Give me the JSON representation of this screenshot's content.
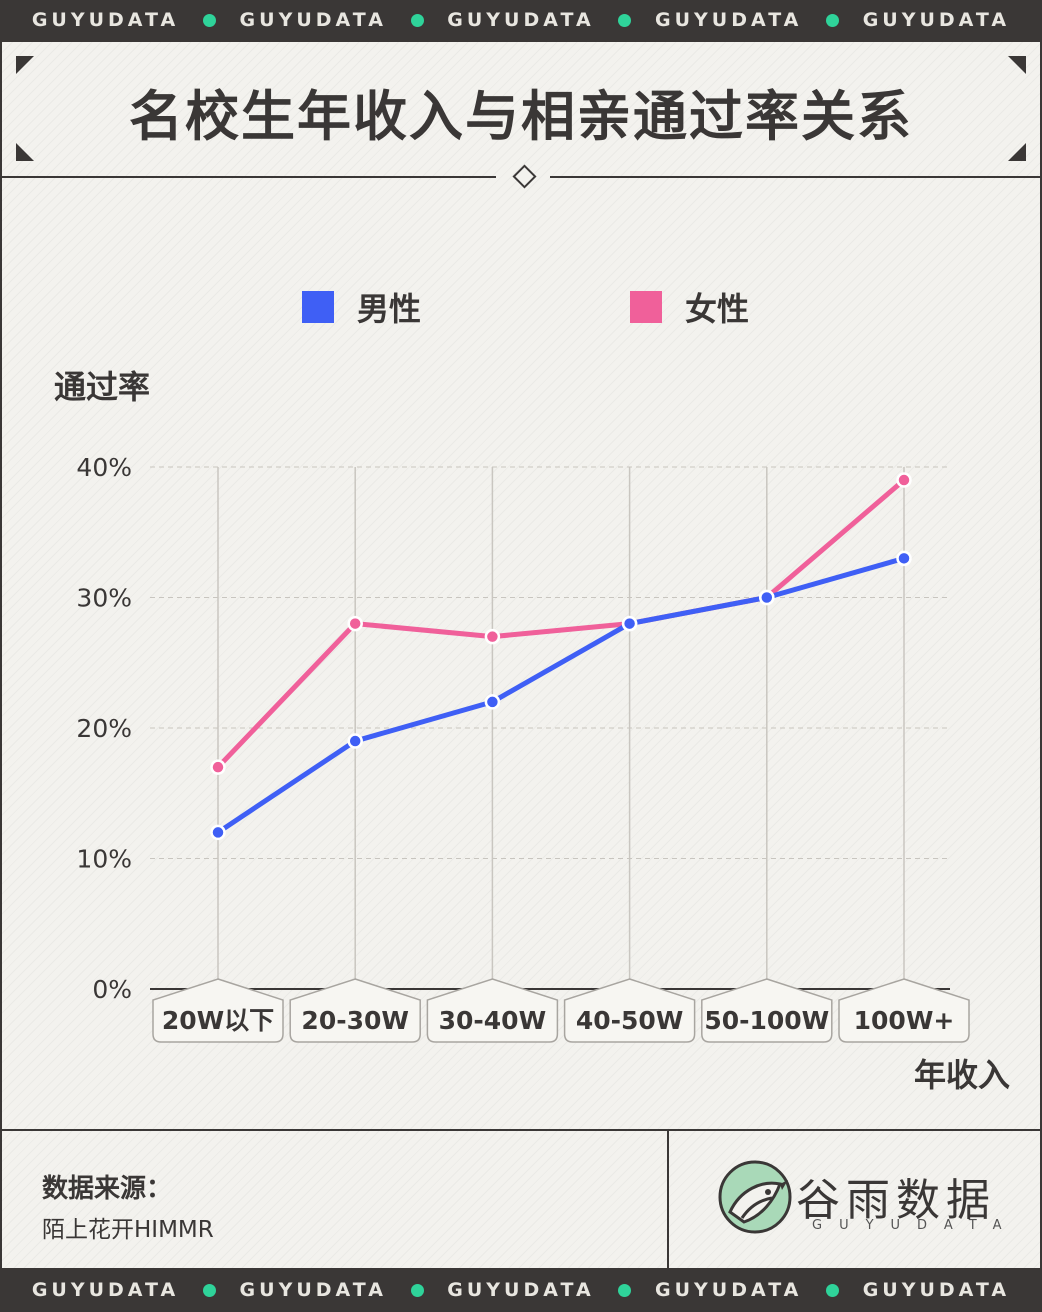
{
  "brand": {
    "band_text": "GUYUDATA",
    "name": "谷雨数据",
    "sub": "GUYUDATA"
  },
  "header": {
    "title": "名校生年收入与相亲通过率关系"
  },
  "footer": {
    "source_label": "数据来源：",
    "source_value": "陌上花开HIMMR"
  },
  "colors": {
    "male": "#3f5ff5",
    "female": "#f0609a",
    "dark": "#3a3736",
    "accent": "#2fd39a"
  },
  "chart_data": {
    "type": "line",
    "title": "名校生年收入与相亲通过率关系",
    "xlabel": "年收入",
    "ylabel": "通过率",
    "categories": [
      "20W以下",
      "20-30W",
      "30-40W",
      "40-50W",
      "50-100W",
      "100W+"
    ],
    "yticks": [
      "0%",
      "10%",
      "20%",
      "30%",
      "40%"
    ],
    "ylim": [
      0,
      40
    ],
    "grid": true,
    "legend": "top",
    "series": [
      {
        "name": "男性",
        "color": "#3f5ff5",
        "values": [
          12,
          19,
          22,
          28,
          30,
          33
        ]
      },
      {
        "name": "女性",
        "color": "#f0609a",
        "values": [
          17,
          28,
          27,
          28,
          30,
          39
        ]
      }
    ]
  }
}
